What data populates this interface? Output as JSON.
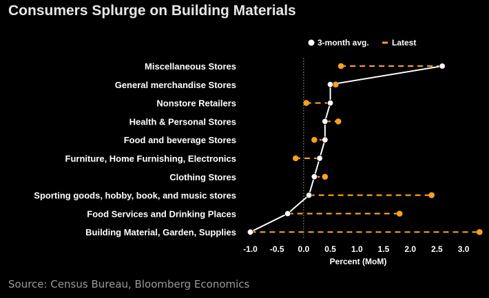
{
  "chart_data": {
    "type": "scatter",
    "title": "Consumers Splurge on Building Materials",
    "xlabel": "Percent (MoM)",
    "ylabel": "",
    "xlim": [
      -1.05,
      3.25
    ],
    "xticks": [
      -1.0,
      -0.5,
      0.0,
      0.5,
      1.0,
      1.5,
      2.0,
      2.5,
      3.0
    ],
    "xtick_labels": [
      "-1.0",
      "-0.5",
      "0.0",
      "0.5",
      "1.0",
      "1.5",
      "2.0",
      "2.5",
      "3.0"
    ],
    "categories": [
      "Miscellaneous Stores",
      "General merchandise Stores",
      "Nonstore Retailers",
      "Health & Personal Stores",
      "Food and beverage Stores",
      "Furniture, Home Furnishing, Electronics",
      "Clothing Stores",
      "Sporting goods, hobby, book, and music stores",
      "Food Services and Drinking Places",
      "Building Material, Garden, Supplies"
    ],
    "series": [
      {
        "name": "3-month avg.",
        "color": "#ffffff",
        "values": [
          2.6,
          0.5,
          0.5,
          0.4,
          0.4,
          0.3,
          0.2,
          0.1,
          -0.3,
          -1.0
        ]
      },
      {
        "name": "Latest",
        "color": "#f7a021",
        "values": [
          0.7,
          0.6,
          0.05,
          0.65,
          0.2,
          -0.15,
          0.4,
          2.4,
          1.8,
          3.3
        ]
      }
    ],
    "legend": "top-right",
    "grid": false,
    "zero_line": true,
    "source": "Source: Census Bureau, Bloomberg Economics"
  }
}
